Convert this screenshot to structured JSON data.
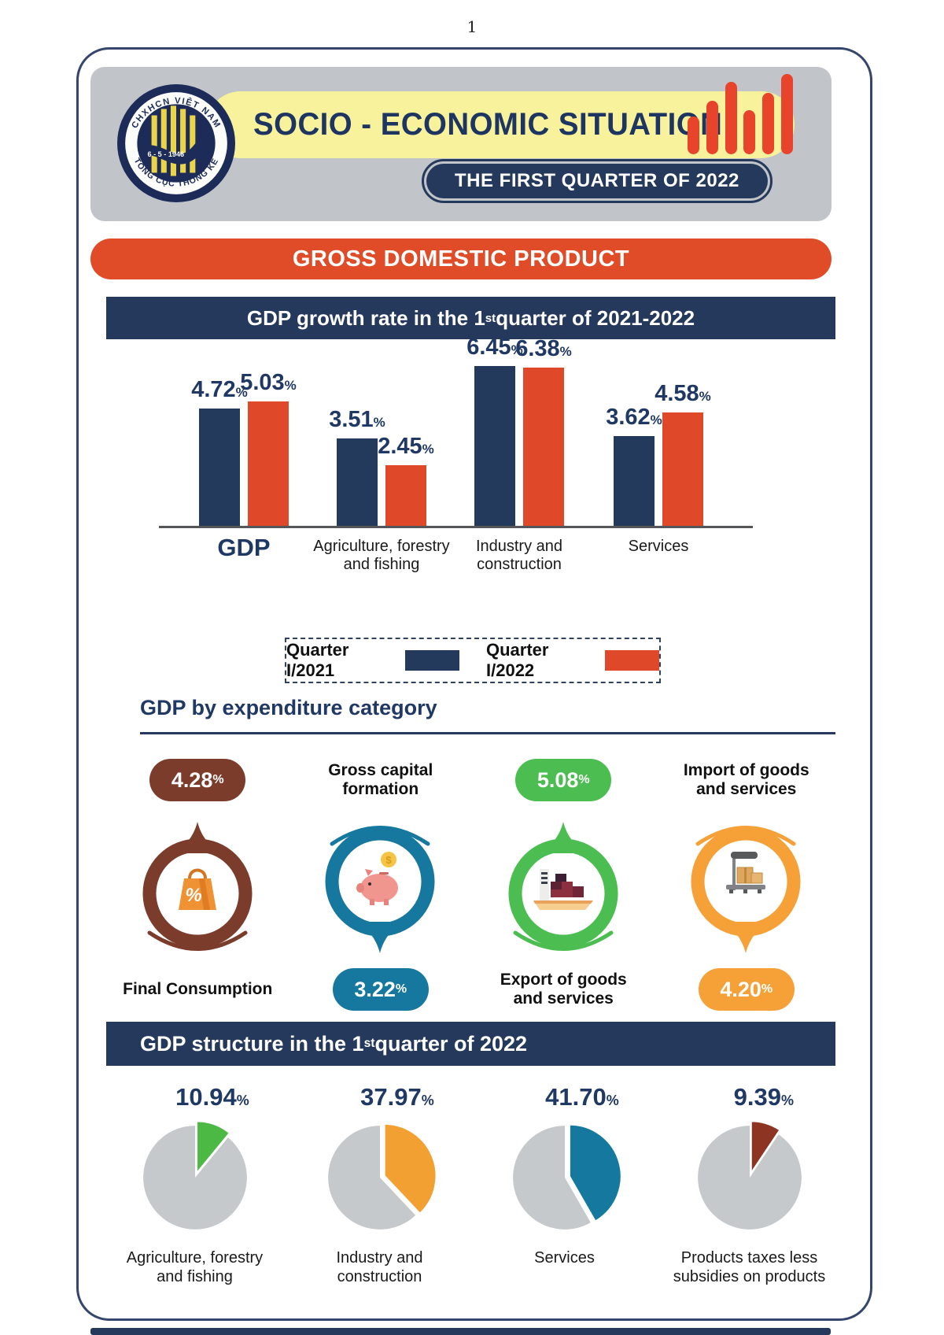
{
  "page_number": "1",
  "header": {
    "logo": {
      "top_text": "CHXHCN VIỆT NAM",
      "bottom_text": "TỔNG CỤC THỐNG KÊ",
      "date": "6 - 5 - 1946"
    },
    "title": "SOCIO - ECONOMIC SITUATION",
    "subtitle": "THE FIRST QUARTER OF 2022"
  },
  "section_title": "GROSS DOMESTIC PRODUCT",
  "growth": {
    "title_pre": "GDP growth rate in the 1",
    "title_sup": "st",
    "title_post": " quarter of 2021-2022"
  },
  "structure": {
    "title_pre": "GDP structure in the 1",
    "title_sup": "st",
    "title_post": " quarter of 2022"
  },
  "chart_data": [
    {
      "type": "bar",
      "title": "GDP growth rate in the 1st quarter of 2021-2022",
      "categories": [
        "GDP",
        "Agriculture, forestry and fishing",
        "Industry and construction",
        "Services"
      ],
      "categories_lines": [
        [
          "GDP"
        ],
        [
          "Agriculture, forestry",
          "and fishing"
        ],
        [
          "Industry and",
          "construction"
        ],
        [
          "Services"
        ]
      ],
      "series": [
        {
          "name": "Quarter I/2021",
          "color": "#243A5C",
          "values": [
            4.72,
            3.51,
            6.45,
            3.62
          ]
        },
        {
          "name": "Quarter I/2022",
          "color": "#E0482A",
          "values": [
            5.03,
            2.45,
            6.38,
            4.58
          ]
        }
      ],
      "unit": "%",
      "ylim": [
        0,
        7
      ],
      "grid": false,
      "legend_position": "bottom"
    },
    {
      "type": "pie",
      "title": "GDP structure in the 1st quarter of 2022",
      "unit": "%",
      "remainder_color": "#C6C9CB",
      "slices": [
        {
          "label": "Agriculture, forestry and fishing",
          "label_lines": [
            "Agriculture, forestry",
            "and fishing"
          ],
          "value": 10.94,
          "color": "#4CB944"
        },
        {
          "label": "Industry and construction",
          "label_lines": [
            "Industry and",
            "construction"
          ],
          "value": 37.97,
          "color": "#F2A032"
        },
        {
          "label": "Services",
          "label_lines": [
            "Services"
          ],
          "value": 41.7,
          "color": "#15799F"
        },
        {
          "label": "Products taxes less subsidies on products",
          "label_lines": [
            "Products taxes less",
            "subsidies on products"
          ],
          "value": 9.39,
          "color": "#8E3423"
        }
      ]
    }
  ],
  "expenditure": {
    "heading": "GDP by expenditure category",
    "unit": "%",
    "items": [
      {
        "label": "Final Consumption",
        "label_lines": [
          "Final Consumption"
        ],
        "value": "4.28",
        "color": "#7C3C2C",
        "icon": "shopping-bag"
      },
      {
        "label": "Gross capital formation",
        "label_lines": [
          "Gross capital formation"
        ],
        "value": "3.22",
        "color": "#17789F",
        "icon": "piggy-bank"
      },
      {
        "label": "Export of goods and services",
        "label_lines": [
          "Export of goods",
          "and services"
        ],
        "value": "5.08",
        "color": "#4CBE51",
        "icon": "cargo-ship"
      },
      {
        "label": "Import of goods and services",
        "label_lines": [
          "Import of goods",
          "and services"
        ],
        "value": "4.20",
        "color": "#F5A137",
        "icon": "weighing-scale"
      }
    ]
  }
}
